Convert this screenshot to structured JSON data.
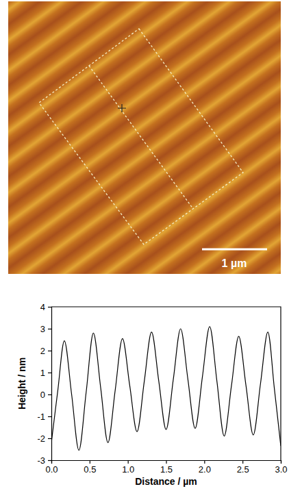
{
  "image": {
    "scale_bar": "1 µm"
  },
  "chart_data": {
    "type": "line",
    "x_label": "Distance / µm",
    "y_label": "Height / nm",
    "color": "#000000",
    "x": [
      0,
      0.085,
      0.17,
      0.265,
      0.36,
      0.455,
      0.55,
      0.645,
      0.74,
      0.835,
      0.93,
      1.025,
      1.12,
      1.215,
      1.31,
      1.405,
      1.5,
      1.595,
      1.69,
      1.785,
      1.88,
      1.975,
      2.07,
      2.165,
      2.26,
      2.355,
      2.45,
      2.545,
      2.64,
      2.735,
      2.83,
      2.915,
      3.0
    ],
    "values": [
      -2.2,
      0.2,
      2.45,
      0.0,
      -2.55,
      0.1,
      2.8,
      0.3,
      -2.2,
      0.2,
      2.55,
      0.4,
      -1.7,
      0.6,
      2.85,
      0.6,
      -1.6,
      0.7,
      3.0,
      0.7,
      -1.55,
      0.8,
      3.1,
      0.6,
      -1.9,
      0.4,
      2.65,
      0.4,
      -1.85,
      0.5,
      2.85,
      0.3,
      -2.35
    ],
    "xlim": [
      0,
      3.0
    ],
    "ylim": [
      -3,
      4
    ],
    "xticks": [
      {
        "value": 0,
        "label": "0.0"
      },
      0.5,
      {
        "value": 1,
        "label": "1.0"
      },
      1.5,
      {
        "value": 2,
        "label": "2.0"
      },
      2.5,
      {
        "value": 3,
        "label": "3.0"
      }
    ],
    "yticks": [
      -3,
      -2,
      -1,
      0,
      1,
      2,
      3,
      4
    ]
  }
}
